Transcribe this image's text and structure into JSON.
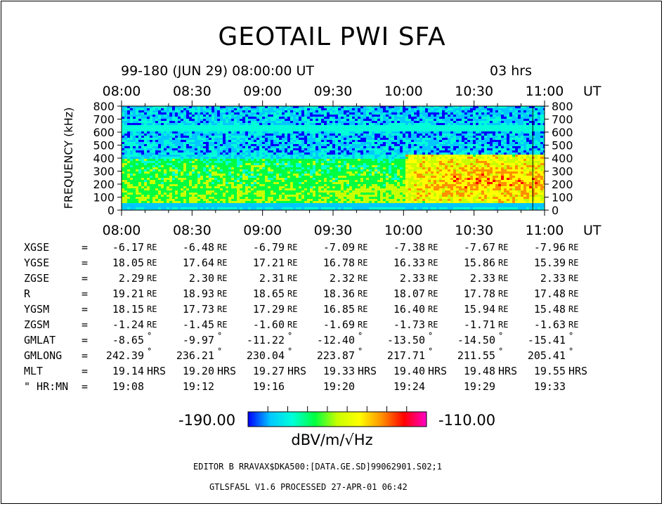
{
  "chart_data": {
    "type": "heatmap",
    "title": "GEOTAIL PWI SFA",
    "date_line": "99-180 (JUN 29) 08:00:00 UT",
    "duration_label": "03 hrs",
    "xlabel": "UT",
    "ylabel": "FREQUENCY (kHz)",
    "x_ticks": [
      "08:00",
      "08:30",
      "09:00",
      "09:30",
      "10:00",
      "10:30",
      "11:00"
    ],
    "y_ticks": [
      0,
      100,
      200,
      300,
      400,
      500,
      600,
      700,
      800
    ],
    "ylim": [
      0,
      800
    ],
    "xlim_minutes": [
      0,
      180
    ],
    "colorbar": {
      "min": "-190.00",
      "max": "-110.00",
      "unit": "dBV/m/√Hz",
      "colors": [
        "#0000ff",
        "#00c8ff",
        "#00ffd8",
        "#00ff40",
        "#c8ff00",
        "#ffff00",
        "#ff9000",
        "#ff0000",
        "#ff00c8"
      ]
    }
  },
  "orbit": {
    "rows": [
      {
        "label": "XGSE",
        "values": [
          "-6.17",
          "-6.48",
          "-6.79",
          "-7.09",
          "-7.38",
          "-7.67",
          "-7.96"
        ],
        "unit": "RE"
      },
      {
        "label": "YGSE",
        "values": [
          "18.05",
          "17.64",
          "17.21",
          "16.78",
          "16.33",
          "15.86",
          "15.39"
        ],
        "unit": "RE"
      },
      {
        "label": "ZGSE",
        "values": [
          "2.29",
          "2.30",
          "2.31",
          "2.32",
          "2.33",
          "2.33",
          "2.33"
        ],
        "unit": "RE"
      },
      {
        "label": "R",
        "values": [
          "19.21",
          "18.93",
          "18.65",
          "18.36",
          "18.07",
          "17.78",
          "17.48"
        ],
        "unit": "RE"
      },
      {
        "label": "YGSM",
        "values": [
          "18.15",
          "17.73",
          "17.29",
          "16.85",
          "16.40",
          "15.94",
          "15.48"
        ],
        "unit": "RE"
      },
      {
        "label": "ZGSM",
        "values": [
          "-1.24",
          "-1.45",
          "-1.60",
          "-1.69",
          "-1.73",
          "-1.71",
          "-1.63"
        ],
        "unit": "RE"
      },
      {
        "label": "GMLAT",
        "values": [
          "-8.65",
          "-9.97",
          "-11.22",
          "-12.40",
          "-13.50",
          "-14.50",
          "-15.41"
        ],
        "unit": "°"
      },
      {
        "label": "GMLONG",
        "values": [
          "242.39",
          "236.21",
          "230.04",
          "223.87",
          "217.71",
          "211.55",
          "205.41"
        ],
        "unit": "°"
      },
      {
        "label": "MLT",
        "values": [
          "19.14",
          "19.20",
          "19.27",
          "19.33",
          "19.40",
          "19.48",
          "19.55"
        ],
        "unit": "HRS"
      },
      {
        "label": "\" HR:MN",
        "values": [
          "19:08",
          "19:12",
          "19:16",
          "19:20",
          "19:24",
          "19:29",
          "19:33"
        ],
        "unit": ""
      }
    ],
    "equals": "="
  },
  "footer": {
    "editor": "EDITOR B    RRAVAX$DKA500:[DATA.GE.SD]99062901.S02;1",
    "version": "GTLSFA5L V1.6       PROCESSED 27-APR-01   06:42"
  }
}
